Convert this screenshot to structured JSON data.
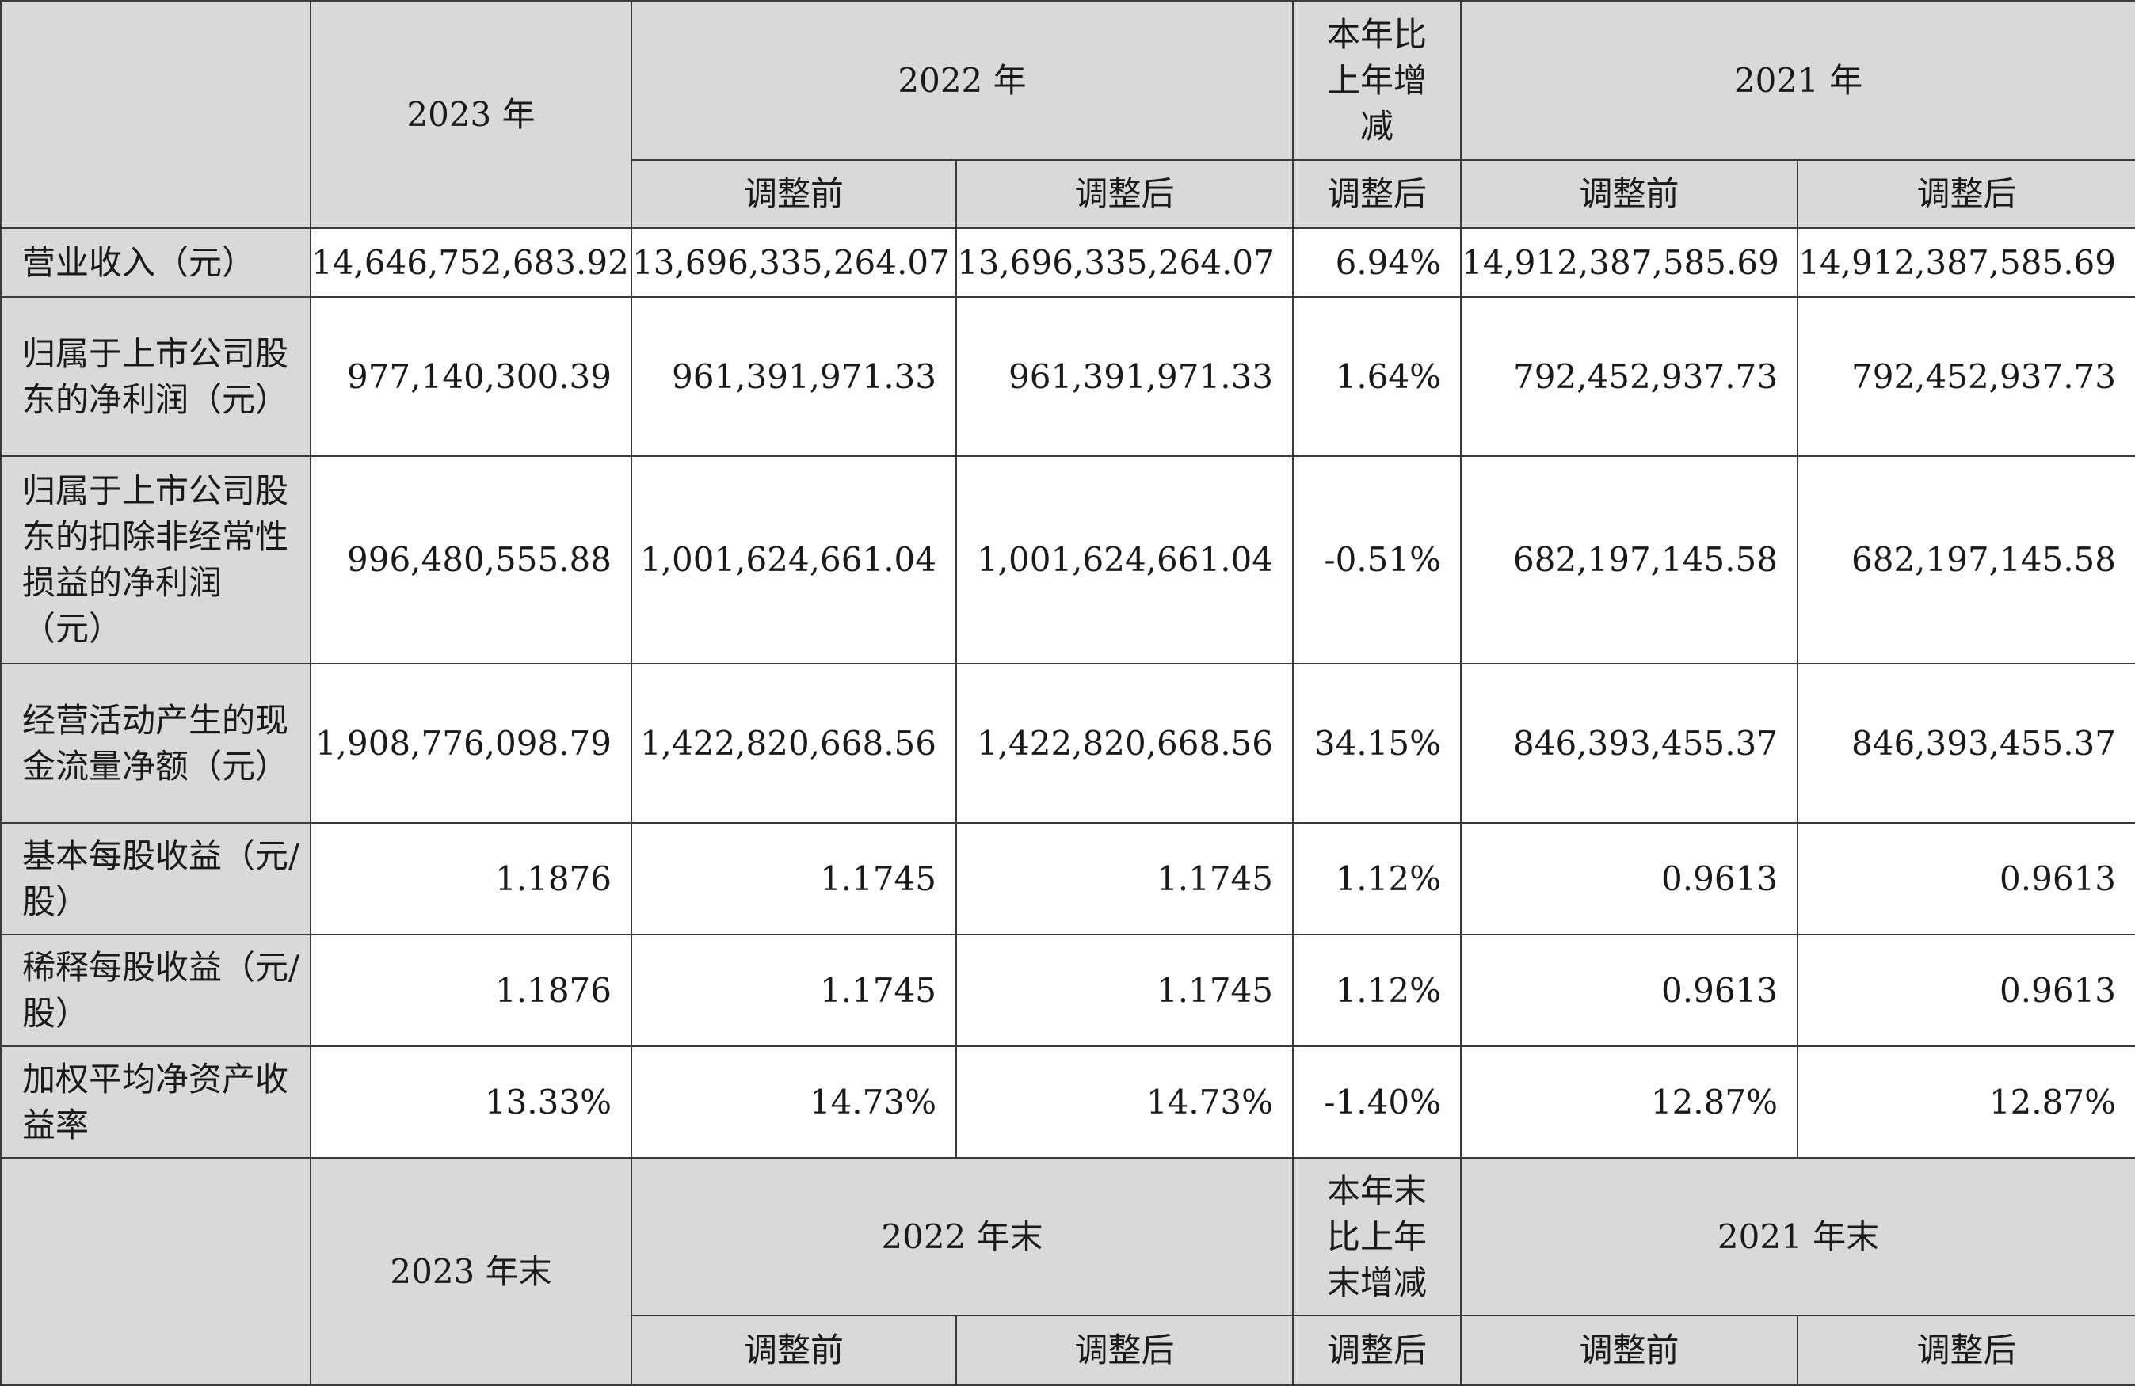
{
  "header1": {
    "col_2023": "2023 年",
    "col_2022": "2022 年",
    "col_change": "本年比上年增减",
    "col_2021": "2021 年",
    "sub_2022_before": "调整前",
    "sub_2022_after": "调整后",
    "sub_change": "调整后",
    "sub_2021_before": "调整前",
    "sub_2021_after": "调整后"
  },
  "rows": [
    {
      "label": "营业收入（元）",
      "v2023": "14,646,752,683.92",
      "v2022_before": "13,696,335,264.07",
      "v2022_after": "13,696,335,264.07",
      "change": "6.94%",
      "v2021_before": "14,912,387,585.69",
      "v2021_after": "14,912,387,585.69"
    },
    {
      "label": "归属于上市公司股东的净利润（元）",
      "v2023": "977,140,300.39",
      "v2022_before": "961,391,971.33",
      "v2022_after": "961,391,971.33",
      "change": "1.64%",
      "v2021_before": "792,452,937.73",
      "v2021_after": "792,452,937.73"
    },
    {
      "label": "归属于上市公司股东的扣除非经常性损益的净利润（元）",
      "v2023": "996,480,555.88",
      "v2022_before": "1,001,624,661.04",
      "v2022_after": "1,001,624,661.04",
      "change": "-0.51%",
      "v2021_before": "682,197,145.58",
      "v2021_after": "682,197,145.58"
    },
    {
      "label": "经营活动产生的现金流量净额（元）",
      "v2023": "1,908,776,098.79",
      "v2022_before": "1,422,820,668.56",
      "v2022_after": "1,422,820,668.56",
      "change": "34.15%",
      "v2021_before": "846,393,455.37",
      "v2021_after": "846,393,455.37"
    },
    {
      "label": "基本每股收益（元/股）",
      "v2023": "1.1876",
      "v2022_before": "1.1745",
      "v2022_after": "1.1745",
      "change": "1.12%",
      "v2021_before": "0.9613",
      "v2021_after": "0.9613"
    },
    {
      "label": "稀释每股收益（元/股）",
      "v2023": "1.1876",
      "v2022_before": "1.1745",
      "v2022_after": "1.1745",
      "change": "1.12%",
      "v2021_before": "0.9613",
      "v2021_after": "0.9613"
    },
    {
      "label": "加权平均净资产收益率",
      "v2023": "13.33%",
      "v2022_before": "14.73%",
      "v2022_after": "14.73%",
      "change": "-1.40%",
      "v2021_before": "12.87%",
      "v2021_after": "12.87%"
    }
  ],
  "header2": {
    "col_2023": "2023 年末",
    "col_2022": "2022 年末",
    "col_change": "本年末比上年末增减",
    "col_2021": "2021 年末",
    "sub_2022_before": "调整前",
    "sub_2022_after": "调整后",
    "sub_change": "调整后",
    "sub_2021_before": "调整前",
    "sub_2021_after": "调整后"
  }
}
